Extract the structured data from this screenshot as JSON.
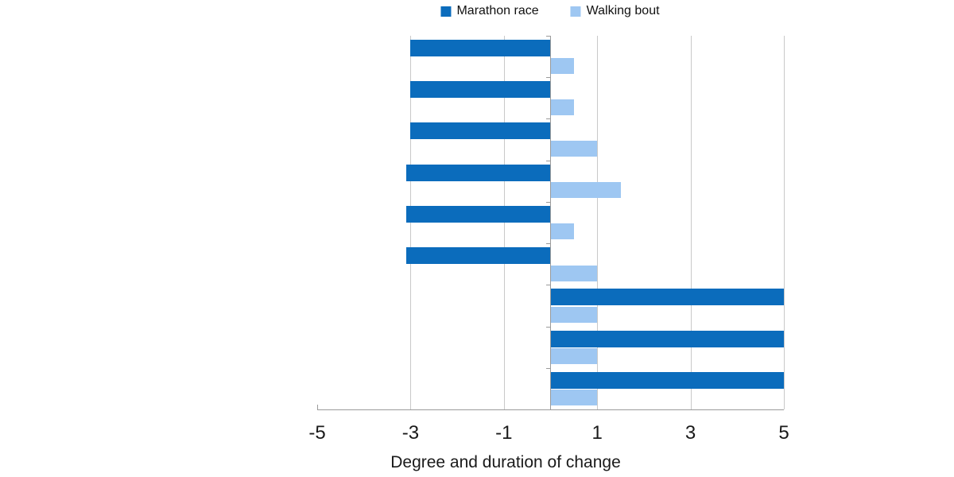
{
  "legend": {
    "items": [
      {
        "label": "Marathon race",
        "color": "#0b6cbc"
      },
      {
        "label": "Walking bout",
        "color": "#9ec7f2"
      }
    ]
  },
  "chart_data": {
    "type": "bar",
    "orientation": "horizontal",
    "title": "",
    "xlabel": "Degree and duration of change",
    "ylabel": "",
    "xlim": [
      -5,
      5
    ],
    "xticks": [
      -5,
      -3,
      -1,
      1,
      3,
      5
    ],
    "gridlines": [
      -3,
      -1,
      1,
      3,
      5
    ],
    "legend_position": "top",
    "categories": [
      "",
      "",
      "",
      "",
      "",
      "",
      "",
      "",
      ""
    ],
    "series": [
      {
        "name": "Marathon race",
        "color": "#0b6cbc",
        "values": [
          -3,
          -3,
          -3,
          -3.1,
          -3.1,
          -3.1,
          5,
          5,
          5
        ]
      },
      {
        "name": "Walking bout",
        "color": "#9ec7f2",
        "values": [
          0.5,
          0.5,
          1,
          1.5,
          0.5,
          1,
          1,
          1,
          1
        ]
      }
    ],
    "colors": {
      "gridline": "#c9c9c9",
      "axis_line": "#9b9b9b",
      "tick_label": "#1a1a1a",
      "axis_title": "#1a1a1a"
    }
  }
}
